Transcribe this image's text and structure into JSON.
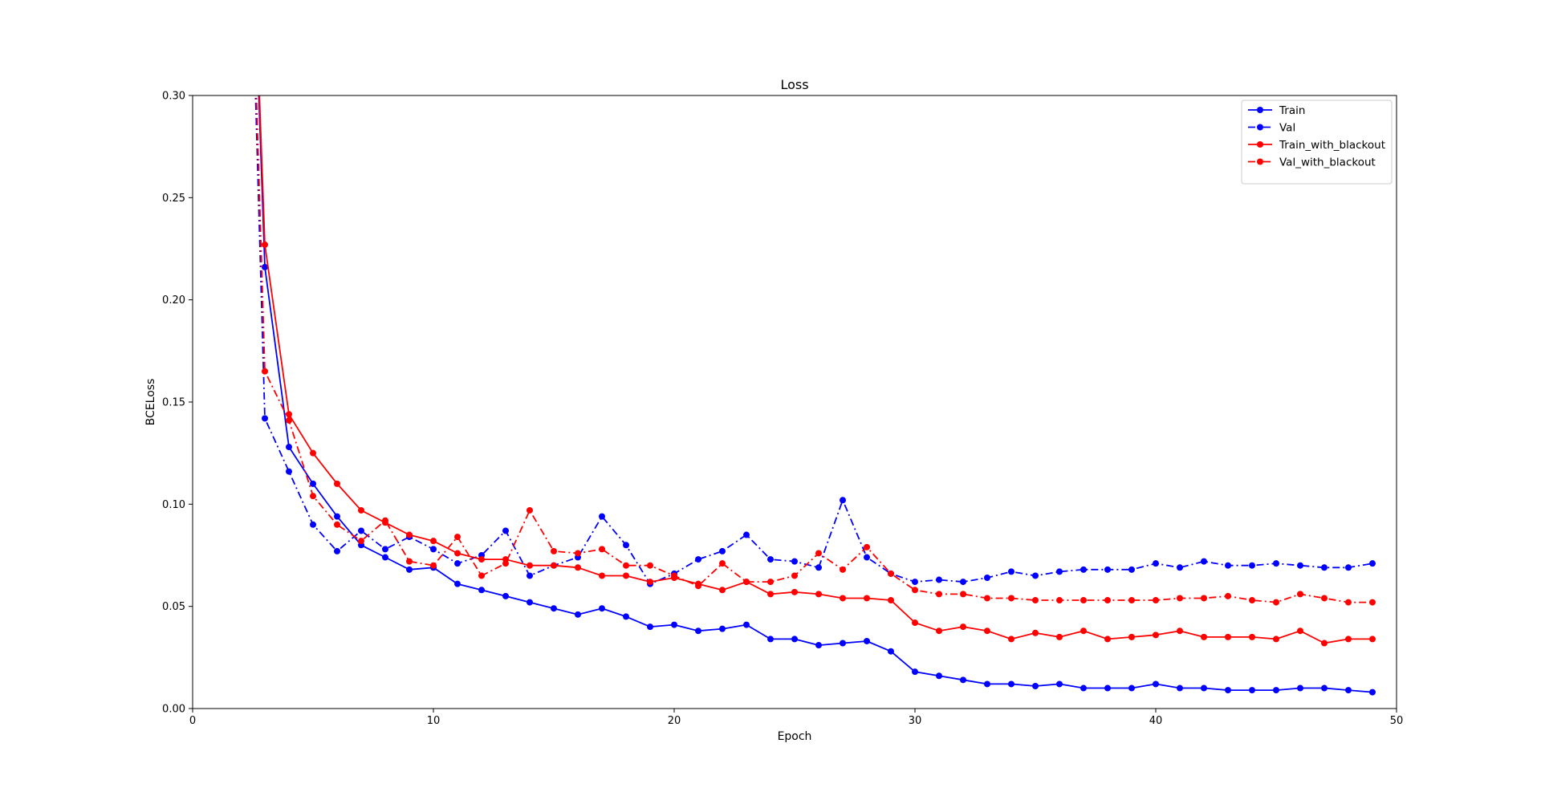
{
  "chart_data": {
    "type": "line",
    "title": "Loss",
    "xlabel": "Epoch",
    "ylabel": "BCELoss",
    "xlim": [
      0,
      50
    ],
    "ylim": [
      0,
      0.3
    ],
    "xticks": [
      0,
      10,
      20,
      30,
      40,
      50
    ],
    "xtick_labels": [
      "0",
      "10",
      "20",
      "30",
      "40",
      "50"
    ],
    "yticks": [
      0,
      0.05,
      0.1,
      0.15,
      0.2,
      0.25,
      0.3
    ],
    "ytick_labels": [
      "0.00",
      "0.05",
      "0.10",
      "0.15",
      "0.20",
      "0.25",
      "0.30"
    ],
    "grid": false,
    "legend_position": "top-right",
    "x": [
      2,
      3,
      4,
      5,
      6,
      7,
      8,
      9,
      10,
      11,
      12,
      13,
      14,
      15,
      16,
      17,
      18,
      19,
      20,
      21,
      22,
      23,
      24,
      25,
      26,
      27,
      28,
      29,
      30,
      31,
      32,
      33,
      34,
      35,
      36,
      37,
      38,
      39,
      40,
      41,
      42,
      43,
      44,
      45,
      46,
      47,
      48,
      49
    ],
    "series": [
      {
        "name": "Train",
        "color": "#0000ff",
        "style": "solid",
        "values": [
          0.55,
          0.216,
          0.128,
          0.11,
          0.094,
          0.08,
          0.074,
          0.068,
          0.069,
          0.061,
          0.058,
          0.055,
          0.052,
          0.049,
          0.046,
          0.049,
          0.045,
          0.04,
          0.041,
          0.038,
          0.039,
          0.041,
          0.034,
          0.034,
          0.031,
          0.032,
          0.033,
          0.028,
          0.018,
          0.016,
          0.014,
          0.012,
          0.012,
          0.011,
          0.012,
          0.01,
          0.01,
          0.01,
          0.012,
          0.01,
          0.01,
          0.009,
          0.009,
          0.009,
          0.01,
          0.01,
          0.009,
          0.008
        ]
      },
      {
        "name": "Val",
        "color": "#0000ff",
        "style": "dashdot",
        "values": [
          0.55,
          0.142,
          0.116,
          0.09,
          0.077,
          0.087,
          0.078,
          0.084,
          0.078,
          0.071,
          0.075,
          0.087,
          0.065,
          0.07,
          0.074,
          0.094,
          0.08,
          0.061,
          0.066,
          0.073,
          0.077,
          0.085,
          0.073,
          0.072,
          0.069,
          0.102,
          0.074,
          0.066,
          0.062,
          0.063,
          0.062,
          0.064,
          0.067,
          0.065,
          0.067,
          0.068,
          0.068,
          0.068,
          0.071,
          0.069,
          0.072,
          0.07,
          0.07,
          0.071,
          0.07,
          0.069,
          0.069,
          0.071
        ]
      },
      {
        "name": "Train_with_blackout",
        "color": "#ff0000",
        "style": "solid",
        "values": [
          0.55,
          0.227,
          0.144,
          0.125,
          0.11,
          0.097,
          0.091,
          0.085,
          0.082,
          0.076,
          0.073,
          0.073,
          0.07,
          0.07,
          0.069,
          0.065,
          0.065,
          0.062,
          0.064,
          0.061,
          0.058,
          0.062,
          0.056,
          0.057,
          0.056,
          0.054,
          0.054,
          0.053,
          0.042,
          0.038,
          0.04,
          0.038,
          0.034,
          0.037,
          0.035,
          0.038,
          0.034,
          0.035,
          0.036,
          0.038,
          0.035,
          0.035,
          0.035,
          0.034,
          0.038,
          0.032,
          0.034,
          0.034
        ]
      },
      {
        "name": "Val_with_blackout",
        "color": "#ff0000",
        "style": "dashdot",
        "values": [
          0.55,
          0.165,
          0.141,
          0.104,
          0.09,
          0.082,
          0.092,
          0.072,
          0.07,
          0.084,
          0.065,
          0.071,
          0.097,
          0.077,
          0.076,
          0.078,
          0.07,
          0.07,
          0.065,
          0.06,
          0.071,
          0.062,
          0.062,
          0.065,
          0.076,
          0.068,
          0.079,
          0.066,
          0.058,
          0.056,
          0.056,
          0.054,
          0.054,
          0.053,
          0.053,
          0.053,
          0.053,
          0.053,
          0.053,
          0.054,
          0.054,
          0.055,
          0.053,
          0.052,
          0.056,
          0.054,
          0.052,
          0.052
        ]
      }
    ]
  }
}
